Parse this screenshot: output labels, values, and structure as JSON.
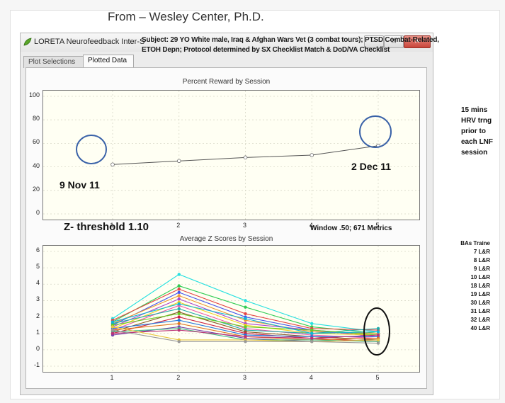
{
  "slide": {
    "title": "From – Wesley Center, Ph.D."
  },
  "window": {
    "title": "LORETA Neurofeedback Inter-S",
    "buttons": [
      "–",
      "□",
      "✕"
    ]
  },
  "subject_note": "Subject: 29 YO White male, Iraq & Afghan Wars Vet (3 combat tours); PTSD Combat-Related, ETOH Depn; Protocol determined by SX Checklist Match & DoD/VA Checklist",
  "tabs": [
    {
      "label": "Plot Selections",
      "active": false
    },
    {
      "label": "Plotted Data",
      "active": true
    }
  ],
  "charts": {
    "top": {
      "title": "Percent Reward by Session",
      "y_ticks": [
        "100",
        "80",
        "60",
        "40",
        "20",
        "0"
      ],
      "x_ticks": [
        "1",
        "2",
        "3",
        "4",
        "5"
      ]
    },
    "bottom": {
      "title": "Average Z Scores by Session",
      "y_ticks": [
        "6",
        "5",
        "4",
        "3",
        "2",
        "1",
        "0",
        "-1"
      ],
      "x_ticks": [
        "1",
        "2",
        "3",
        "4",
        "5"
      ]
    }
  },
  "annotations": {
    "date_start": "9 Nov 11",
    "date_end": "2 Dec 11",
    "z_threshold": "Z- threshold 1.10",
    "window_metrics": "Window .50; 671 Metrics"
  },
  "side_note": "15 mins HRV trng prior to each LNF session",
  "bas_heading": "BAs Traine",
  "bas_items": [
    "7 L&R",
    "8 L&R",
    "9 L&R",
    "10 L&R",
    "18 L&R",
    "19 L&R",
    "30 L&R",
    "31 L&R",
    "32 L&R",
    "40 L&R"
  ],
  "chart_data": [
    {
      "type": "line",
      "title": "Percent Reward by Session",
      "x": [
        1,
        2,
        3,
        4,
        5
      ],
      "series": [
        {
          "values": [
            42,
            45,
            48,
            50,
            58
          ]
        }
      ],
      "ylim": [
        0,
        100
      ],
      "xlim": [
        1,
        5
      ],
      "grid": true
    },
    {
      "type": "line",
      "title": "Average Z Scores by Session",
      "x": [
        1,
        2,
        3,
        4,
        5
      ],
      "ylim": [
        -1,
        6
      ],
      "xlim": [
        1,
        5
      ],
      "grid": true,
      "series_count_note": "many overlapping colored series",
      "series": [
        {
          "values": [
            1.9,
            4.6,
            3.0,
            1.6,
            1.1
          ],
          "color": "#28e0e0"
        },
        {
          "values": [
            1.7,
            3.9,
            2.6,
            1.4,
            1.0
          ],
          "color": "#33cc55"
        },
        {
          "values": [
            1.8,
            3.7,
            2.2,
            1.3,
            1.2
          ],
          "color": "#e54545"
        },
        {
          "values": [
            1.5,
            3.5,
            2.0,
            1.2,
            0.9
          ],
          "color": "#4455ee"
        },
        {
          "values": [
            1.6,
            3.3,
            1.8,
            1.1,
            1.0
          ],
          "color": "#ee9933"
        },
        {
          "values": [
            1.4,
            3.1,
            1.6,
            1.2,
            0.8
          ],
          "color": "#aa44cc"
        },
        {
          "values": [
            1.3,
            2.9,
            1.5,
            1.0,
            0.9
          ],
          "color": "#f0d020"
        },
        {
          "values": [
            1.2,
            2.7,
            1.3,
            0.9,
            0.7
          ],
          "color": "#ee55aa"
        },
        {
          "values": [
            1.6,
            2.5,
            1.2,
            1.0,
            1.3
          ],
          "color": "#22aaaa"
        },
        {
          "values": [
            1.1,
            2.3,
            1.1,
            0.8,
            0.6
          ],
          "color": "#8a5a2b"
        },
        {
          "values": [
            1.5,
            2.2,
            1.4,
            1.2,
            0.9
          ],
          "color": "#66cc22"
        },
        {
          "values": [
            1.0,
            2.0,
            1.0,
            0.7,
            0.5
          ],
          "color": "#cc2244"
        },
        {
          "values": [
            1.3,
            1.8,
            0.9,
            0.8,
            0.8
          ],
          "color": "#2277dd"
        },
        {
          "values": [
            1.2,
            1.6,
            0.8,
            0.6,
            0.7
          ],
          "color": "#dd7722"
        },
        {
          "values": [
            0.9,
            1.4,
            0.7,
            0.5,
            0.6
          ],
          "color": "#7744aa"
        },
        {
          "values": [
            1.1,
            1.3,
            0.6,
            0.6,
            0.5
          ],
          "color": "#44bb88"
        },
        {
          "values": [
            1.0,
            1.2,
            0.8,
            0.7,
            0.9
          ],
          "color": "#bb3377"
        },
        {
          "values": [
            1.4,
            0.6,
            0.6,
            0.5,
            0.6
          ],
          "color": "#e8c440"
        },
        {
          "values": [
            1.2,
            0.5,
            0.5,
            0.5,
            0.4
          ],
          "color": "#999999"
        },
        {
          "values": [
            1.7,
            2.8,
            1.9,
            1.0,
            1.1
          ],
          "color": "#0fb5d5"
        }
      ]
    }
  ]
}
